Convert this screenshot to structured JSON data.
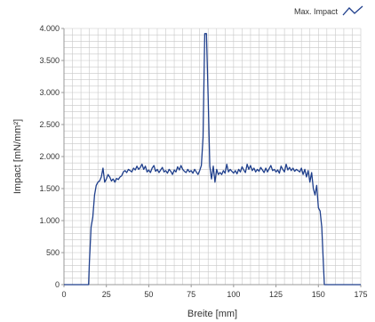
{
  "chart_data": {
    "type": "line",
    "title": "",
    "xlabel": "Breite [mm]",
    "ylabel": "Impact [mN/mm²]",
    "xlim": [
      0,
      175
    ],
    "ylim": [
      0,
      4000
    ],
    "x_ticks": [
      0,
      25,
      50,
      75,
      100,
      125,
      150,
      175
    ],
    "x_tick_labels": [
      "0",
      "25",
      "50",
      "75",
      "100",
      "125",
      "150",
      "175"
    ],
    "y_ticks": [
      0,
      500,
      1000,
      1500,
      2000,
      2500,
      3000,
      3500,
      4000
    ],
    "y_tick_labels": [
      "0",
      "500",
      "1.000",
      "1.500",
      "2.000",
      "2.500",
      "3.000",
      "3.500",
      "4.000"
    ],
    "grid": true,
    "legend_position": "top-right",
    "legend_icon": "zigzag-line-icon",
    "colors": {
      "series": "#1f3f8c",
      "grid": "#c8c8c8",
      "axis": "#999999"
    },
    "series": [
      {
        "name": "Max. Impact",
        "points": [
          [
            0,
            0
          ],
          [
            14.5,
            0
          ],
          [
            15,
            350
          ],
          [
            16,
            900
          ],
          [
            17,
            1050
          ],
          [
            18,
            1400
          ],
          [
            19,
            1550
          ],
          [
            20,
            1600
          ],
          [
            21,
            1620
          ],
          [
            22,
            1680
          ],
          [
            23,
            1820
          ],
          [
            24,
            1600
          ],
          [
            25,
            1650
          ],
          [
            26,
            1720
          ],
          [
            27,
            1680
          ],
          [
            28,
            1620
          ],
          [
            29,
            1650
          ],
          [
            30,
            1600
          ],
          [
            31,
            1660
          ],
          [
            32,
            1640
          ],
          [
            33,
            1680
          ],
          [
            34,
            1700
          ],
          [
            35,
            1760
          ],
          [
            36,
            1780
          ],
          [
            37,
            1750
          ],
          [
            38,
            1800
          ],
          [
            39,
            1780
          ],
          [
            40,
            1760
          ],
          [
            41,
            1820
          ],
          [
            42,
            1790
          ],
          [
            43,
            1850
          ],
          [
            44,
            1800
          ],
          [
            45,
            1830
          ],
          [
            46,
            1880
          ],
          [
            47,
            1800
          ],
          [
            48,
            1850
          ],
          [
            49,
            1760
          ],
          [
            50,
            1790
          ],
          [
            51,
            1750
          ],
          [
            52,
            1820
          ],
          [
            53,
            1860
          ],
          [
            54,
            1770
          ],
          [
            55,
            1800
          ],
          [
            56,
            1750
          ],
          [
            57,
            1790
          ],
          [
            58,
            1830
          ],
          [
            59,
            1760
          ],
          [
            60,
            1780
          ],
          [
            61,
            1740
          ],
          [
            62,
            1800
          ],
          [
            63,
            1770
          ],
          [
            64,
            1720
          ],
          [
            65,
            1790
          ],
          [
            66,
            1760
          ],
          [
            67,
            1840
          ],
          [
            68,
            1790
          ],
          [
            69,
            1860
          ],
          [
            70,
            1800
          ],
          [
            71,
            1770
          ],
          [
            72,
            1750
          ],
          [
            73,
            1800
          ],
          [
            74,
            1760
          ],
          [
            75,
            1780
          ],
          [
            76,
            1740
          ],
          [
            77,
            1800
          ],
          [
            78,
            1760
          ],
          [
            79,
            1720
          ],
          [
            80,
            1780
          ],
          [
            81,
            1860
          ],
          [
            82,
            2300
          ],
          [
            83,
            3920
          ],
          [
            84,
            3920
          ],
          [
            85,
            2950
          ],
          [
            86,
            1850
          ],
          [
            87,
            1650
          ],
          [
            88,
            1850
          ],
          [
            89,
            1600
          ],
          [
            90,
            1800
          ],
          [
            91,
            1720
          ],
          [
            92,
            1750
          ],
          [
            93,
            1720
          ],
          [
            94,
            1780
          ],
          [
            95,
            1740
          ],
          [
            96,
            1880
          ],
          [
            97,
            1760
          ],
          [
            98,
            1800
          ],
          [
            99,
            1770
          ],
          [
            100,
            1740
          ],
          [
            101,
            1780
          ],
          [
            102,
            1730
          ],
          [
            103,
            1800
          ],
          [
            104,
            1760
          ],
          [
            105,
            1840
          ],
          [
            106,
            1790
          ],
          [
            107,
            1750
          ],
          [
            108,
            1880
          ],
          [
            109,
            1800
          ],
          [
            110,
            1860
          ],
          [
            111,
            1780
          ],
          [
            112,
            1820
          ],
          [
            113,
            1760
          ],
          [
            114,
            1800
          ],
          [
            115,
            1770
          ],
          [
            116,
            1830
          ],
          [
            117,
            1790
          ],
          [
            118,
            1750
          ],
          [
            119,
            1820
          ],
          [
            120,
            1760
          ],
          [
            121,
            1810
          ],
          [
            122,
            1860
          ],
          [
            123,
            1780
          ],
          [
            124,
            1800
          ],
          [
            125,
            1760
          ],
          [
            126,
            1790
          ],
          [
            127,
            1740
          ],
          [
            128,
            1850
          ],
          [
            129,
            1800
          ],
          [
            130,
            1760
          ],
          [
            131,
            1880
          ],
          [
            132,
            1790
          ],
          [
            133,
            1830
          ],
          [
            134,
            1780
          ],
          [
            135,
            1820
          ],
          [
            136,
            1770
          ],
          [
            137,
            1800
          ],
          [
            138,
            1780
          ],
          [
            139,
            1760
          ],
          [
            140,
            1820
          ],
          [
            141,
            1720
          ],
          [
            142,
            1800
          ],
          [
            143,
            1680
          ],
          [
            144,
            1780
          ],
          [
            145,
            1600
          ],
          [
            146,
            1750
          ],
          [
            147,
            1500
          ],
          [
            148,
            1400
          ],
          [
            149,
            1550
          ],
          [
            150,
            1200
          ],
          [
            151,
            1150
          ],
          [
            152,
            900
          ],
          [
            153,
            300
          ],
          [
            153.5,
            0
          ],
          [
            175,
            0
          ]
        ]
      }
    ]
  }
}
